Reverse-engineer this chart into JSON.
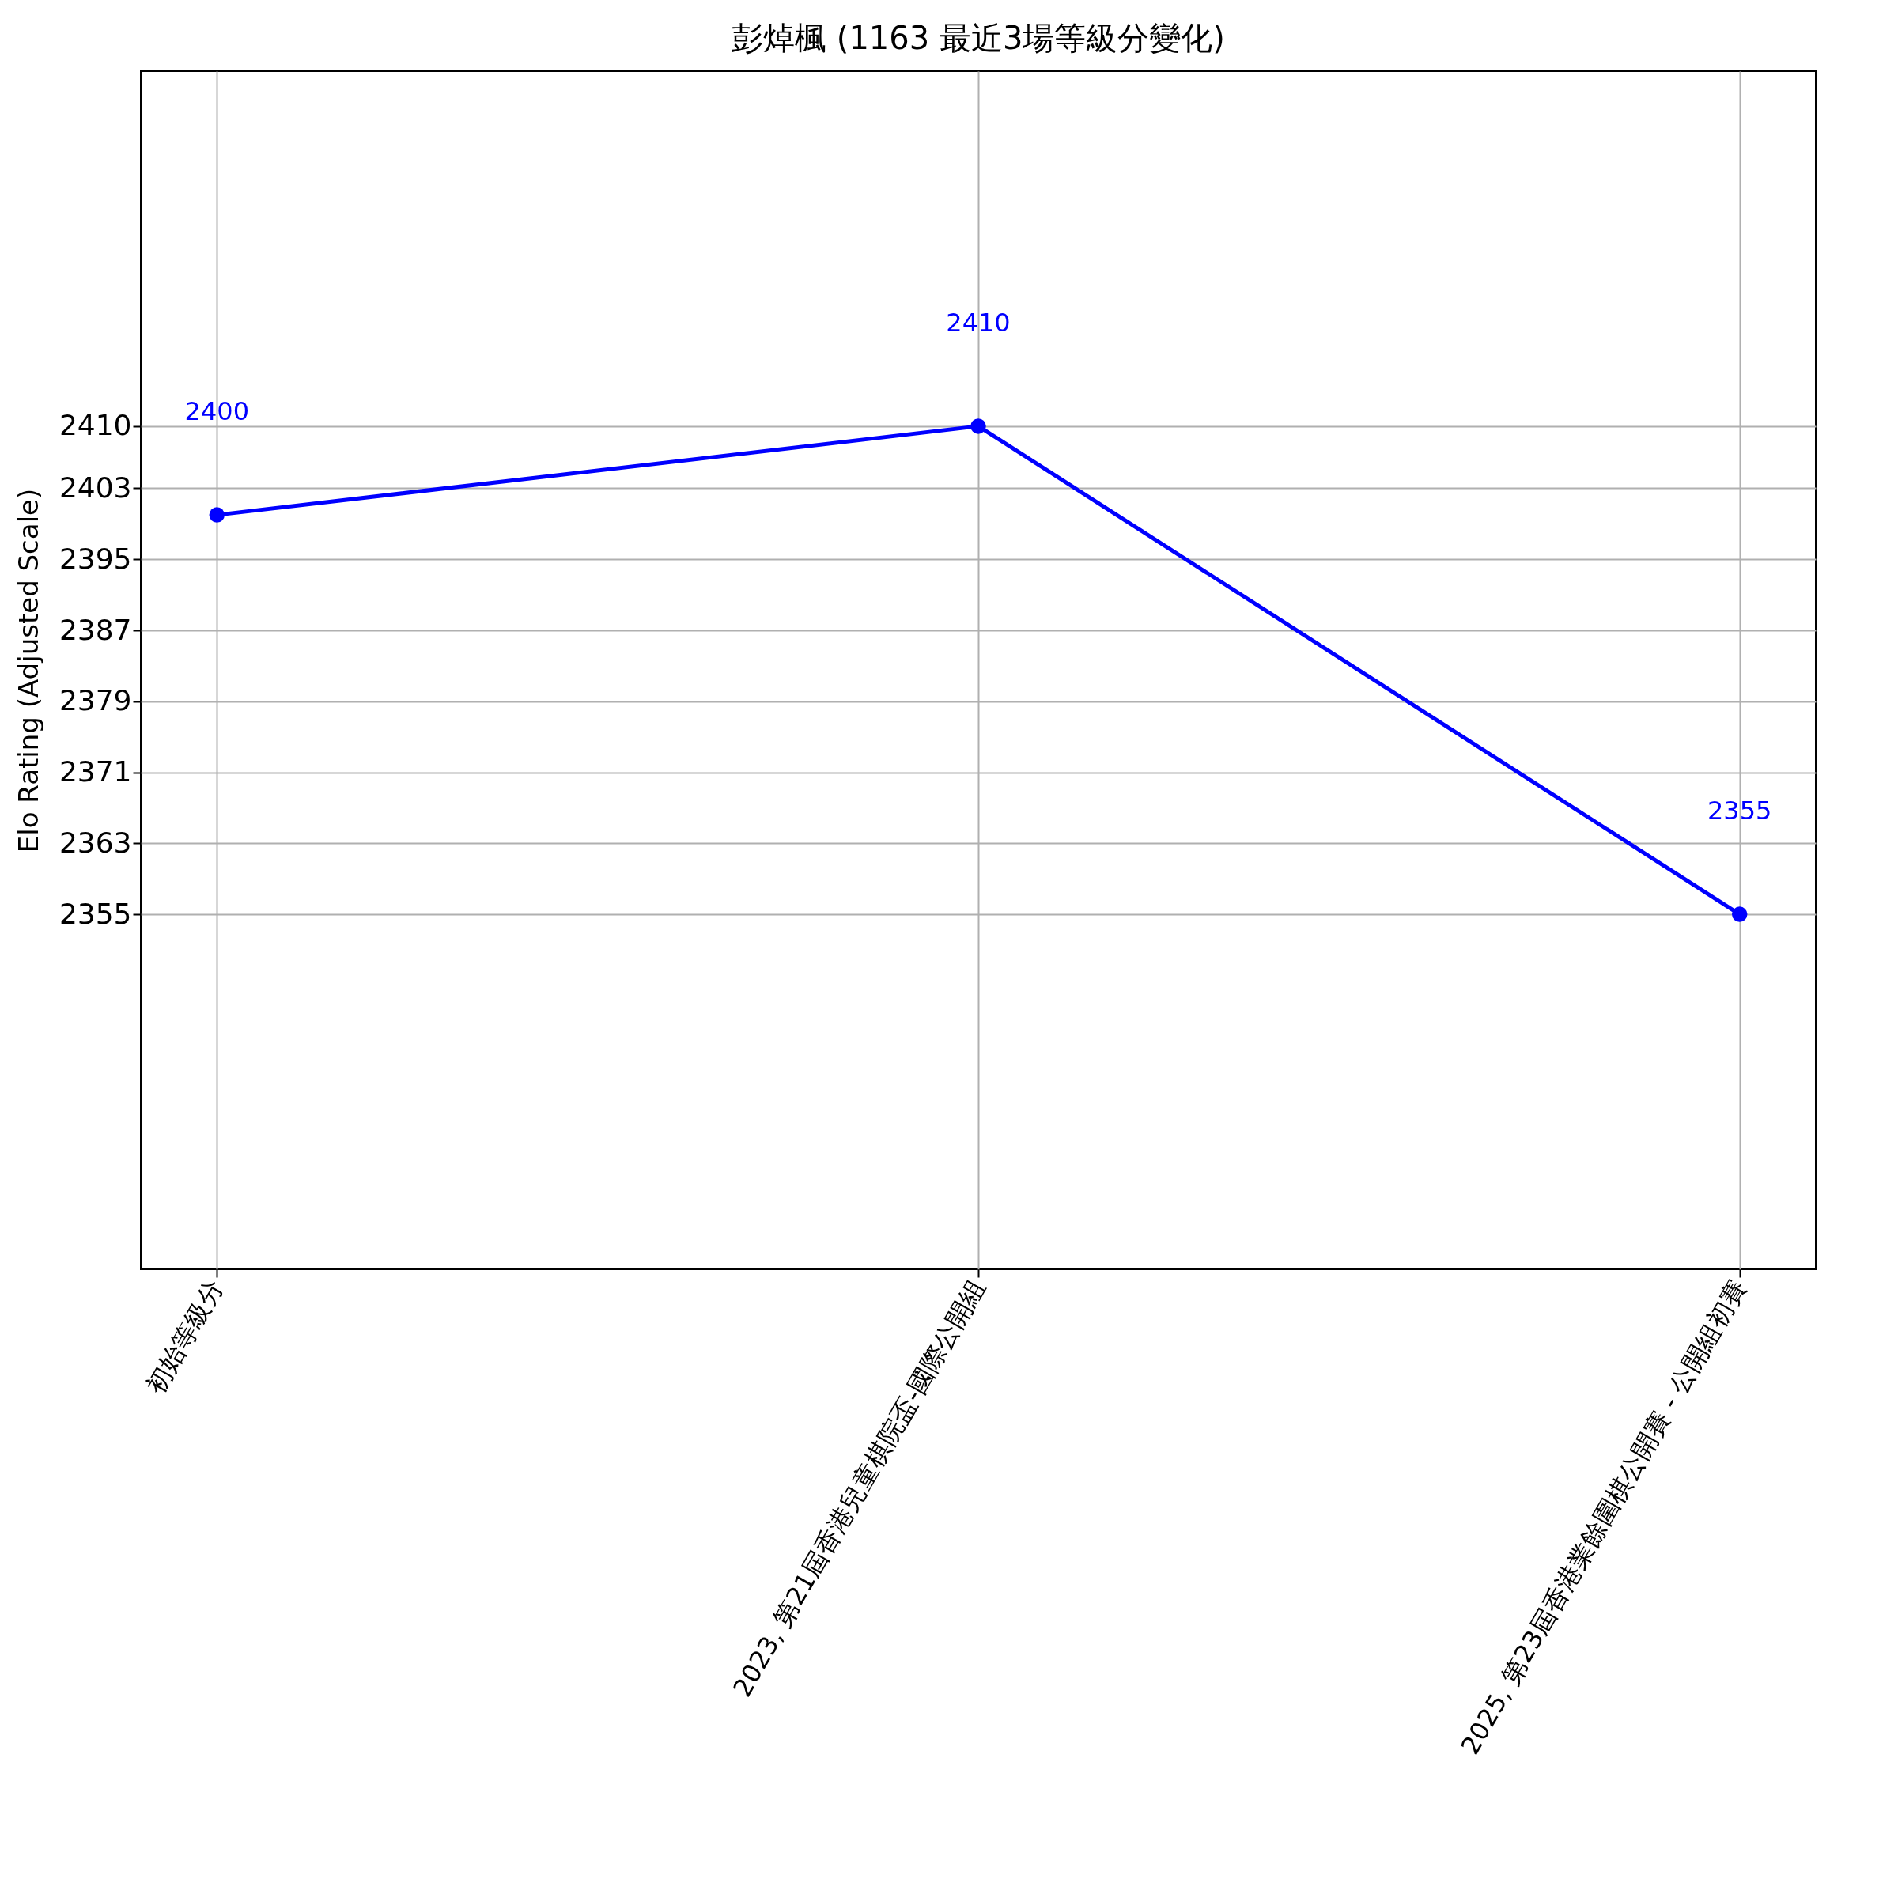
{
  "chart_data": {
    "type": "line",
    "title": "彭焯楓 (1163 最近3場等級分變化)",
    "ylabel": "Elo Rating (Adjusted Scale)",
    "categories": [
      "初始等級分",
      "2023, 第21屆香港兒童棋院盃-國際公開組",
      "2025, 第23屆香港業餘圍棋公開賽 - 公開組初賽"
    ],
    "series": [
      {
        "color": "#0000ff",
        "values": [
          2400,
          2410,
          2355
        ]
      }
    ],
    "ylim": [
      2315,
      2450
    ],
    "yticks": [
      2355,
      2363,
      2371,
      2379,
      2387,
      2395,
      2403,
      2410
    ],
    "grid": true,
    "marker": "circle",
    "line_style": "solid",
    "data_labels": true
  }
}
